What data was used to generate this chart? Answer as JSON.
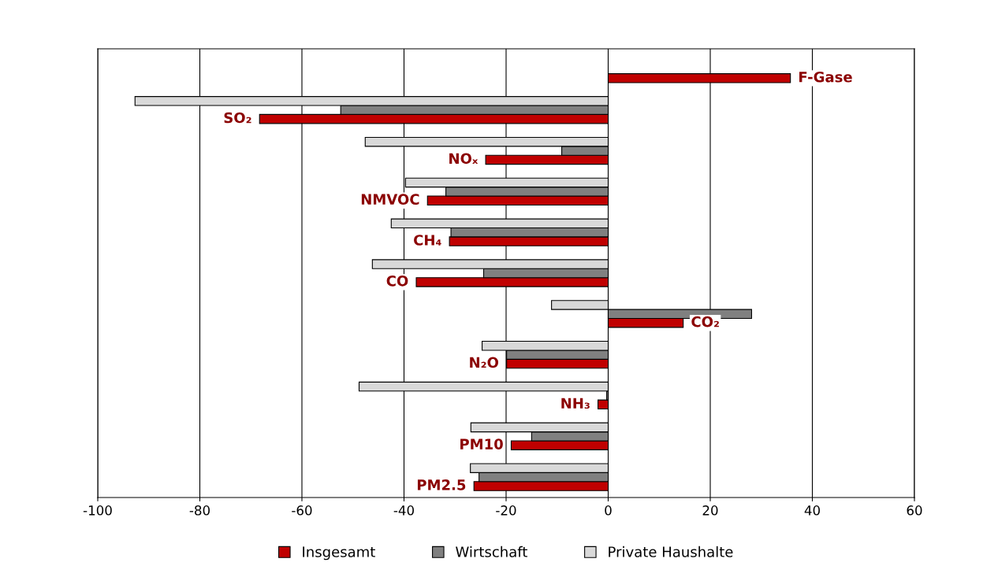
{
  "chart_data": {
    "type": "bar",
    "orientation": "horizontal",
    "categories": [
      "F-Gase",
      "SO₂",
      "NOₓ",
      "NMVOC",
      "CH₄",
      "CO",
      "CO₂",
      "N₂O",
      "NH₃",
      "PM10",
      "PM2.5"
    ],
    "series": [
      {
        "name": "Insgesamt",
        "color": "#c00000",
        "values": [
          35.7,
          -68.3,
          -24.0,
          -35.4,
          -31.1,
          -37.6,
          14.7,
          -19.9,
          -2.0,
          -19.0,
          -26.3
        ]
      },
      {
        "name": "Wirtschaft",
        "color": "#808080",
        "values": [
          null,
          -52.4,
          -9.1,
          -31.8,
          -30.8,
          -24.4,
          28.1,
          -19.9,
          -0.3,
          -15.0,
          -25.3
        ]
      },
      {
        "name": "Private Haushalte",
        "color": "#d9d9d9",
        "values": [
          null,
          -92.7,
          -47.6,
          -39.7,
          -42.5,
          -46.2,
          -11.1,
          -24.7,
          -48.8,
          -26.9,
          -27.0
        ]
      }
    ],
    "xlim": [
      -100,
      60
    ],
    "xticks": [
      -100,
      -80,
      -60,
      -40,
      -20,
      0,
      20,
      40,
      60
    ],
    "grid": "x",
    "legend": "bottom",
    "tick_labels": "x"
  }
}
